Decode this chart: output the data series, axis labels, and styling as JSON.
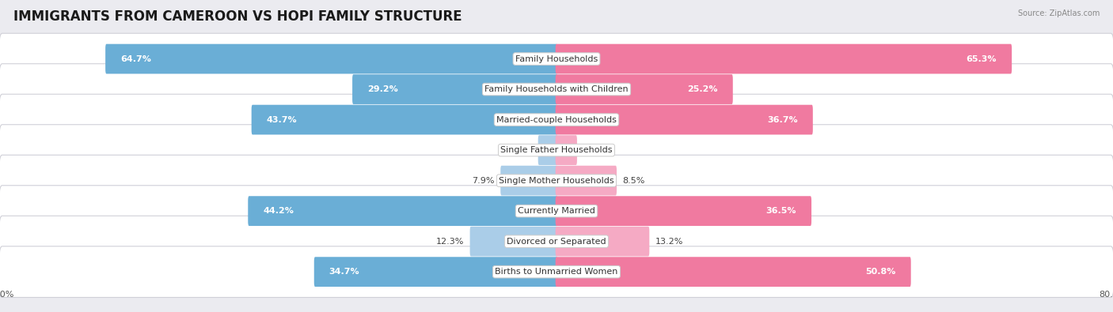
{
  "title": "IMMIGRANTS FROM CAMEROON VS HOPI FAMILY STRUCTURE",
  "source": "Source: ZipAtlas.com",
  "categories": [
    "Family Households",
    "Family Households with Children",
    "Married-couple Households",
    "Single Father Households",
    "Single Mother Households",
    "Currently Married",
    "Divorced or Separated",
    "Births to Unmarried Women"
  ],
  "left_values": [
    64.7,
    29.2,
    43.7,
    2.5,
    7.9,
    44.2,
    12.3,
    34.7
  ],
  "right_values": [
    65.3,
    25.2,
    36.7,
    2.8,
    8.5,
    36.5,
    13.2,
    50.8
  ],
  "max_val": 80.0,
  "left_color_strong": "#6aaed6",
  "left_color_light": "#aacde8",
  "right_color_strong": "#f07aa0",
  "right_color_light": "#f5aac4",
  "left_label": "Immigrants from Cameroon",
  "right_label": "Hopi",
  "background_color": "#ebebf0",
  "row_bg_color": "#ffffff",
  "row_border_color": "#d0d0d8",
  "title_fontsize": 12,
  "label_fontsize": 8,
  "value_fontsize": 8,
  "axis_label_fontsize": 8,
  "strong_threshold": 20
}
